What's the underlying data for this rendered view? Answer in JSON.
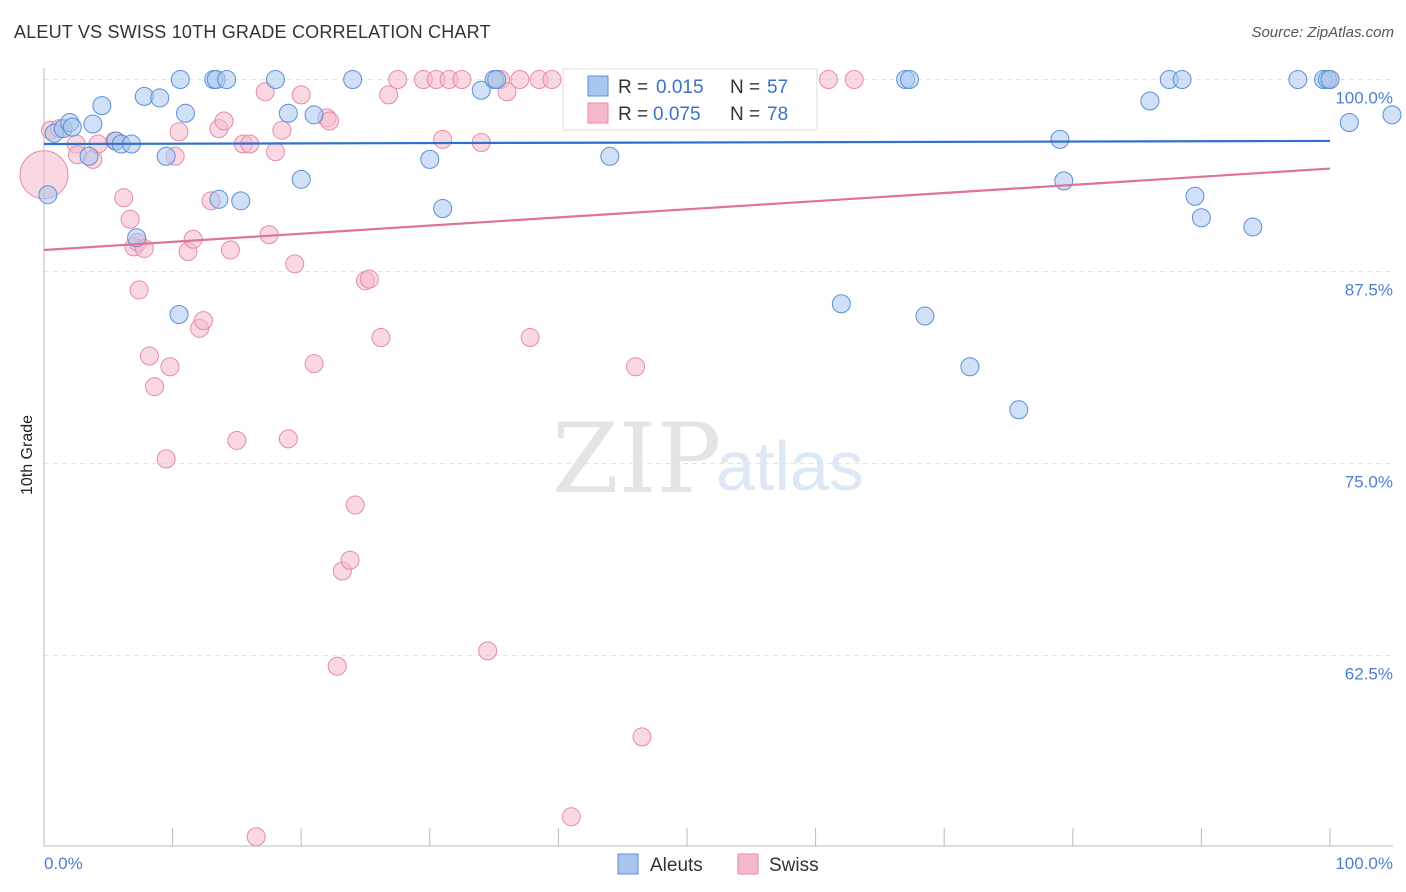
{
  "chart_data": {
    "type": "scatter",
    "title": "ALEUT VS SWISS 10TH GRADE CORRELATION CHART",
    "source": "Source: ZipAtlas.com",
    "ylabel": "10th Grade",
    "xlabel": "",
    "xlim": [
      0,
      100
    ],
    "ylim": [
      50.5,
      101.5
    ],
    "x_tick_labels": [
      "0.0%",
      "100.0%"
    ],
    "y_ticks": [
      {
        "value": 100,
        "label": "100.0%"
      },
      {
        "value": 87.5,
        "label": "87.5%"
      },
      {
        "value": 75,
        "label": "75.0%"
      },
      {
        "value": 62.5,
        "label": "62.5%"
      }
    ],
    "watermark": {
      "zip": "ZIP",
      "atlas": "atlas"
    },
    "legend": [
      {
        "series": "Aleuts",
        "r_label": "R =",
        "r_value": "0.015",
        "n_label": "N =",
        "n_value": "57"
      },
      {
        "series": "Swiss",
        "r_label": "R =",
        "r_value": "0.075",
        "n_label": "N =",
        "n_value": "78"
      }
    ],
    "colors": {
      "aleuts_fill": "#a9c7ee",
      "aleuts_stroke": "#5b8fd6",
      "aleuts_line": "#2f6fcf",
      "swiss_fill": "#f5b8cc",
      "swiss_stroke": "#e68aa8",
      "swiss_line": "#e0719a",
      "grid": "#e3e3e3",
      "axis": "#bbbbbb",
      "tick_text": "#4a7fd0"
    },
    "series": [
      {
        "name": "Aleuts",
        "trend": {
          "x": [
            0,
            100
          ],
          "y": [
            95.8,
            96.0
          ]
        },
        "points": [
          [
            0.3,
            92.5
          ],
          [
            0.8,
            96.5
          ],
          [
            1.5,
            96.8
          ],
          [
            2.0,
            97.2
          ],
          [
            2.2,
            96.9
          ],
          [
            3.5,
            95.0
          ],
          [
            3.8,
            97.1
          ],
          [
            4.5,
            98.3
          ],
          [
            5.6,
            96.0
          ],
          [
            6.0,
            95.8
          ],
          [
            6.8,
            95.8
          ],
          [
            7.2,
            89.7
          ],
          [
            7.8,
            98.9
          ],
          [
            9.0,
            98.8
          ],
          [
            9.5,
            95.0
          ],
          [
            10.5,
            84.7
          ],
          [
            10.6,
            100.0
          ],
          [
            11.0,
            97.8
          ],
          [
            13.2,
            100.0
          ],
          [
            13.4,
            100.0
          ],
          [
            13.6,
            92.2
          ],
          [
            14.2,
            100.0
          ],
          [
            15.3,
            92.1
          ],
          [
            18.0,
            100.0
          ],
          [
            19.0,
            97.8
          ],
          [
            20.0,
            93.5
          ],
          [
            21.0,
            97.7
          ],
          [
            24.0,
            100.0
          ],
          [
            30.0,
            94.8
          ],
          [
            31.0,
            91.6
          ],
          [
            34.0,
            99.3
          ],
          [
            35.0,
            100.0
          ],
          [
            35.2,
            100.0
          ],
          [
            44.0,
            95.0
          ],
          [
            53.0,
            100.0
          ],
          [
            53.5,
            100.0
          ],
          [
            53.8,
            100.0
          ],
          [
            62.0,
            85.4
          ],
          [
            67.0,
            100.0
          ],
          [
            67.3,
            100.0
          ],
          [
            68.5,
            84.6
          ],
          [
            72.0,
            81.3
          ],
          [
            75.8,
            78.5
          ],
          [
            79.0,
            96.1
          ],
          [
            79.3,
            93.4
          ],
          [
            86.0,
            98.6
          ],
          [
            87.5,
            100.0
          ],
          [
            88.5,
            100.0
          ],
          [
            89.5,
            92.4
          ],
          [
            90.0,
            91.0
          ],
          [
            94.0,
            90.4
          ],
          [
            97.5,
            100.0
          ],
          [
            99.5,
            100.0
          ],
          [
            99.8,
            100.0
          ],
          [
            101.5,
            97.2
          ],
          [
            105.0,
            97.7
          ],
          [
            100.0,
            100.0
          ]
        ]
      },
      {
        "name": "Swiss",
        "trend": {
          "x": [
            0,
            100
          ],
          "y": [
            88.9,
            94.2
          ]
        },
        "points": [
          [
            0.0,
            93.8
          ],
          [
            0.5,
            96.7
          ],
          [
            1.2,
            96.8
          ],
          [
            2.5,
            95.8
          ],
          [
            2.6,
            95.1
          ],
          [
            3.8,
            94.8
          ],
          [
            4.2,
            95.8
          ],
          [
            5.5,
            96.0
          ],
          [
            6.2,
            92.3
          ],
          [
            6.7,
            90.9
          ],
          [
            7.0,
            89.1
          ],
          [
            7.3,
            89.4
          ],
          [
            7.4,
            86.3
          ],
          [
            7.8,
            89.0
          ],
          [
            8.2,
            82.0
          ],
          [
            8.6,
            80.0
          ],
          [
            9.5,
            75.3
          ],
          [
            9.8,
            81.3
          ],
          [
            10.2,
            95.0
          ],
          [
            10.5,
            96.6
          ],
          [
            11.2,
            88.8
          ],
          [
            11.6,
            89.6
          ],
          [
            12.1,
            83.8
          ],
          [
            12.4,
            84.3
          ],
          [
            13.0,
            92.1
          ],
          [
            13.6,
            96.8
          ],
          [
            14.0,
            97.3
          ],
          [
            14.5,
            88.9
          ],
          [
            15.0,
            76.5
          ],
          [
            15.5,
            95.8
          ],
          [
            16.0,
            95.8
          ],
          [
            16.5,
            50.7
          ],
          [
            17.2,
            99.2
          ],
          [
            17.5,
            89.9
          ],
          [
            18.0,
            95.3
          ],
          [
            18.5,
            96.7
          ],
          [
            19.0,
            76.6
          ],
          [
            19.5,
            88.0
          ],
          [
            20.0,
            99.0
          ],
          [
            21.0,
            81.5
          ],
          [
            22.0,
            97.5
          ],
          [
            22.2,
            97.3
          ],
          [
            22.8,
            61.8
          ],
          [
            23.2,
            68.0
          ],
          [
            23.8,
            68.7
          ],
          [
            24.2,
            72.3
          ],
          [
            25.0,
            86.9
          ],
          [
            25.3,
            87.0
          ],
          [
            26.2,
            83.2
          ],
          [
            26.8,
            99.0
          ],
          [
            27.5,
            100.0
          ],
          [
            29.5,
            100.0
          ],
          [
            30.5,
            100.0
          ],
          [
            31.0,
            96.1
          ],
          [
            31.5,
            100.0
          ],
          [
            32.5,
            100.0
          ],
          [
            34.0,
            95.9
          ],
          [
            34.5,
            62.8
          ],
          [
            35.5,
            100.0
          ],
          [
            36.0,
            99.2
          ],
          [
            37.0,
            100.0
          ],
          [
            37.8,
            83.2
          ],
          [
            38.5,
            100.0
          ],
          [
            39.5,
            100.0
          ],
          [
            41.0,
            52.0
          ],
          [
            46.0,
            81.3
          ],
          [
            46.5,
            57.2
          ],
          [
            48.0,
            100.0
          ],
          [
            49.5,
            100.0
          ],
          [
            51.0,
            100.0
          ],
          [
            52.5,
            100.0
          ],
          [
            54.0,
            100.0
          ],
          [
            56.0,
            100.0
          ],
          [
            57.0,
            100.0
          ],
          [
            59.0,
            100.0
          ],
          [
            61.0,
            100.0
          ],
          [
            63.0,
            100.0
          ],
          [
            100.0,
            100.0
          ]
        ]
      }
    ]
  }
}
